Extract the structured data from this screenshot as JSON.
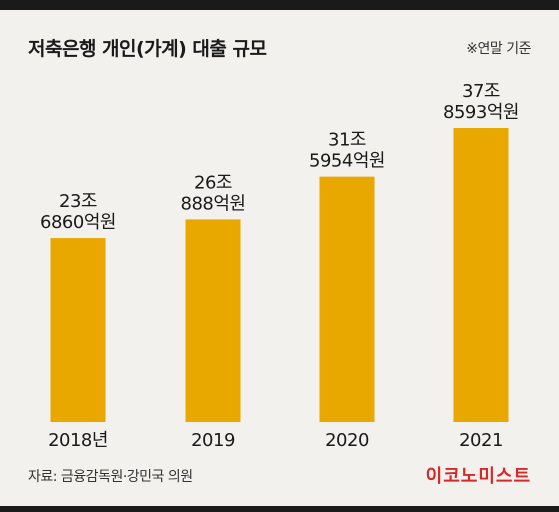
{
  "header": {
    "title": "저축은행 개인(가계) 대출 규모",
    "note": "※연말 기준"
  },
  "footer": {
    "source": "자료: 금융감독원·강민국 의원",
    "logo_text": "이코노미스트"
  },
  "colors": {
    "bar": "#e8a800",
    "background": "#f3f1ee",
    "logo": "#d42a2a"
  },
  "chart_data": {
    "type": "bar",
    "title": "저축은행 개인(가계) 대출 규모",
    "xlabel": "",
    "ylabel": "",
    "categories": [
      "2018년",
      "2019",
      "2020",
      "2021"
    ],
    "values": [
      236860,
      260888,
      315954,
      378593
    ],
    "value_unit": "억원",
    "data_labels": [
      [
        "23조",
        "6860억원"
      ],
      [
        "26조",
        "888억원"
      ],
      [
        "31조",
        "5954억원"
      ],
      [
        "37조",
        "8593억원"
      ]
    ],
    "grid": false,
    "legend": "none"
  }
}
